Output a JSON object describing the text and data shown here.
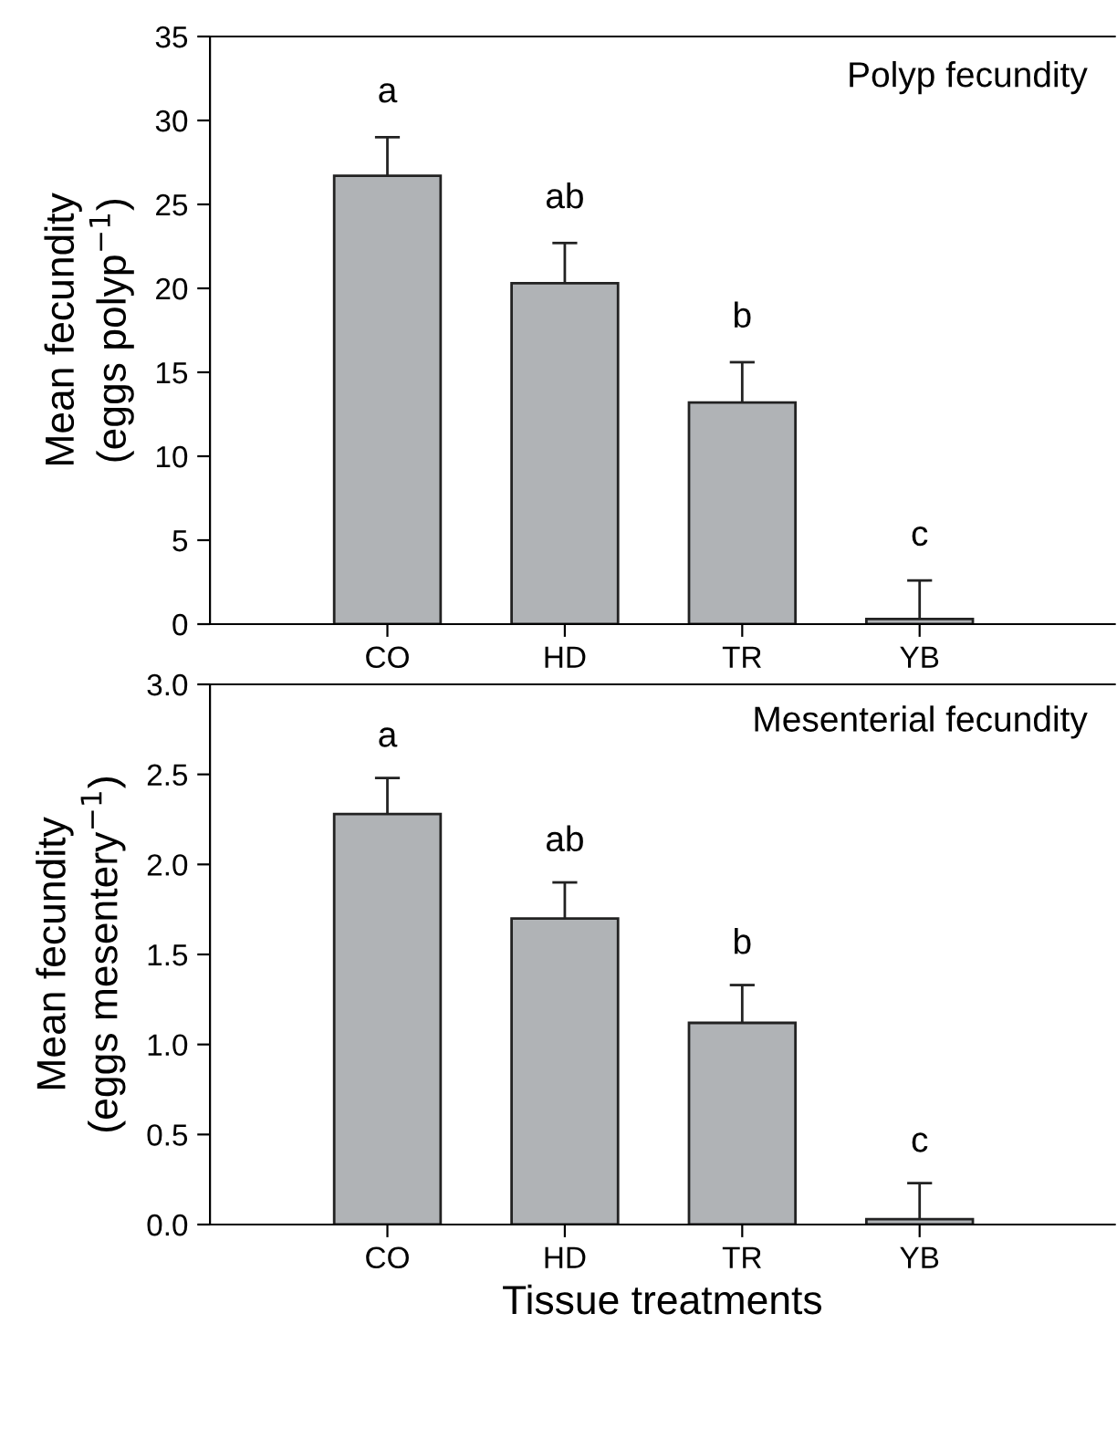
{
  "chart_data": [
    {
      "type": "bar",
      "ylabel": "Mean fecundity\n(eggs polyp$^{−1}$)",
      "categories": [
        "CO",
        "HD",
        "TR",
        "YB"
      ],
      "series": [
        {
          "color": "#b0b3b6",
          "values": [
            26.7,
            20.3,
            13.2,
            0.3
          ],
          "errors": [
            [
              26.7,
              29.0
            ],
            [
              20.3,
              22.7
            ],
            [
              13.2,
              15.6
            ],
            [
              0.3,
              2.6
            ]
          ]
        }
      ],
      "ylim": [
        0,
        35
      ],
      "yticks": [
        0,
        5,
        10,
        15,
        20,
        25,
        30,
        35
      ],
      "grid": false,
      "legend": false,
      "annotations": [
        "Polyp fecundity",
        "a",
        "ab",
        "b",
        "c"
      ]
    },
    {
      "type": "bar",
      "xlabel": "Tissue treatments",
      "ylabel": "Mean fecundity\n(eggs mesentery$^{−1}$)",
      "categories": [
        "CO",
        "HD",
        "TR",
        "YB"
      ],
      "series": [
        {
          "color": "#b0b3b6",
          "values": [
            2.28,
            1.7,
            1.12,
            0.03
          ],
          "errors": [
            [
              2.28,
              2.48
            ],
            [
              1.7,
              1.9
            ],
            [
              1.12,
              1.33
            ],
            [
              0.03,
              0.23
            ]
          ]
        }
      ],
      "ylim": [
        0,
        3.0
      ],
      "yticks": [
        {
          "value": 0,
          "label": "0.0"
        },
        0.5,
        {
          "value": 1,
          "label": "1.0"
        },
        1.5,
        {
          "value": 2,
          "label": "2.0"
        },
        2.5,
        {
          "value": 3,
          "label": "3.0"
        }
      ],
      "grid": false,
      "legend": false,
      "annotations": [
        "Mesenterial fecundity",
        "a",
        "ab",
        "b",
        "c"
      ]
    }
  ]
}
